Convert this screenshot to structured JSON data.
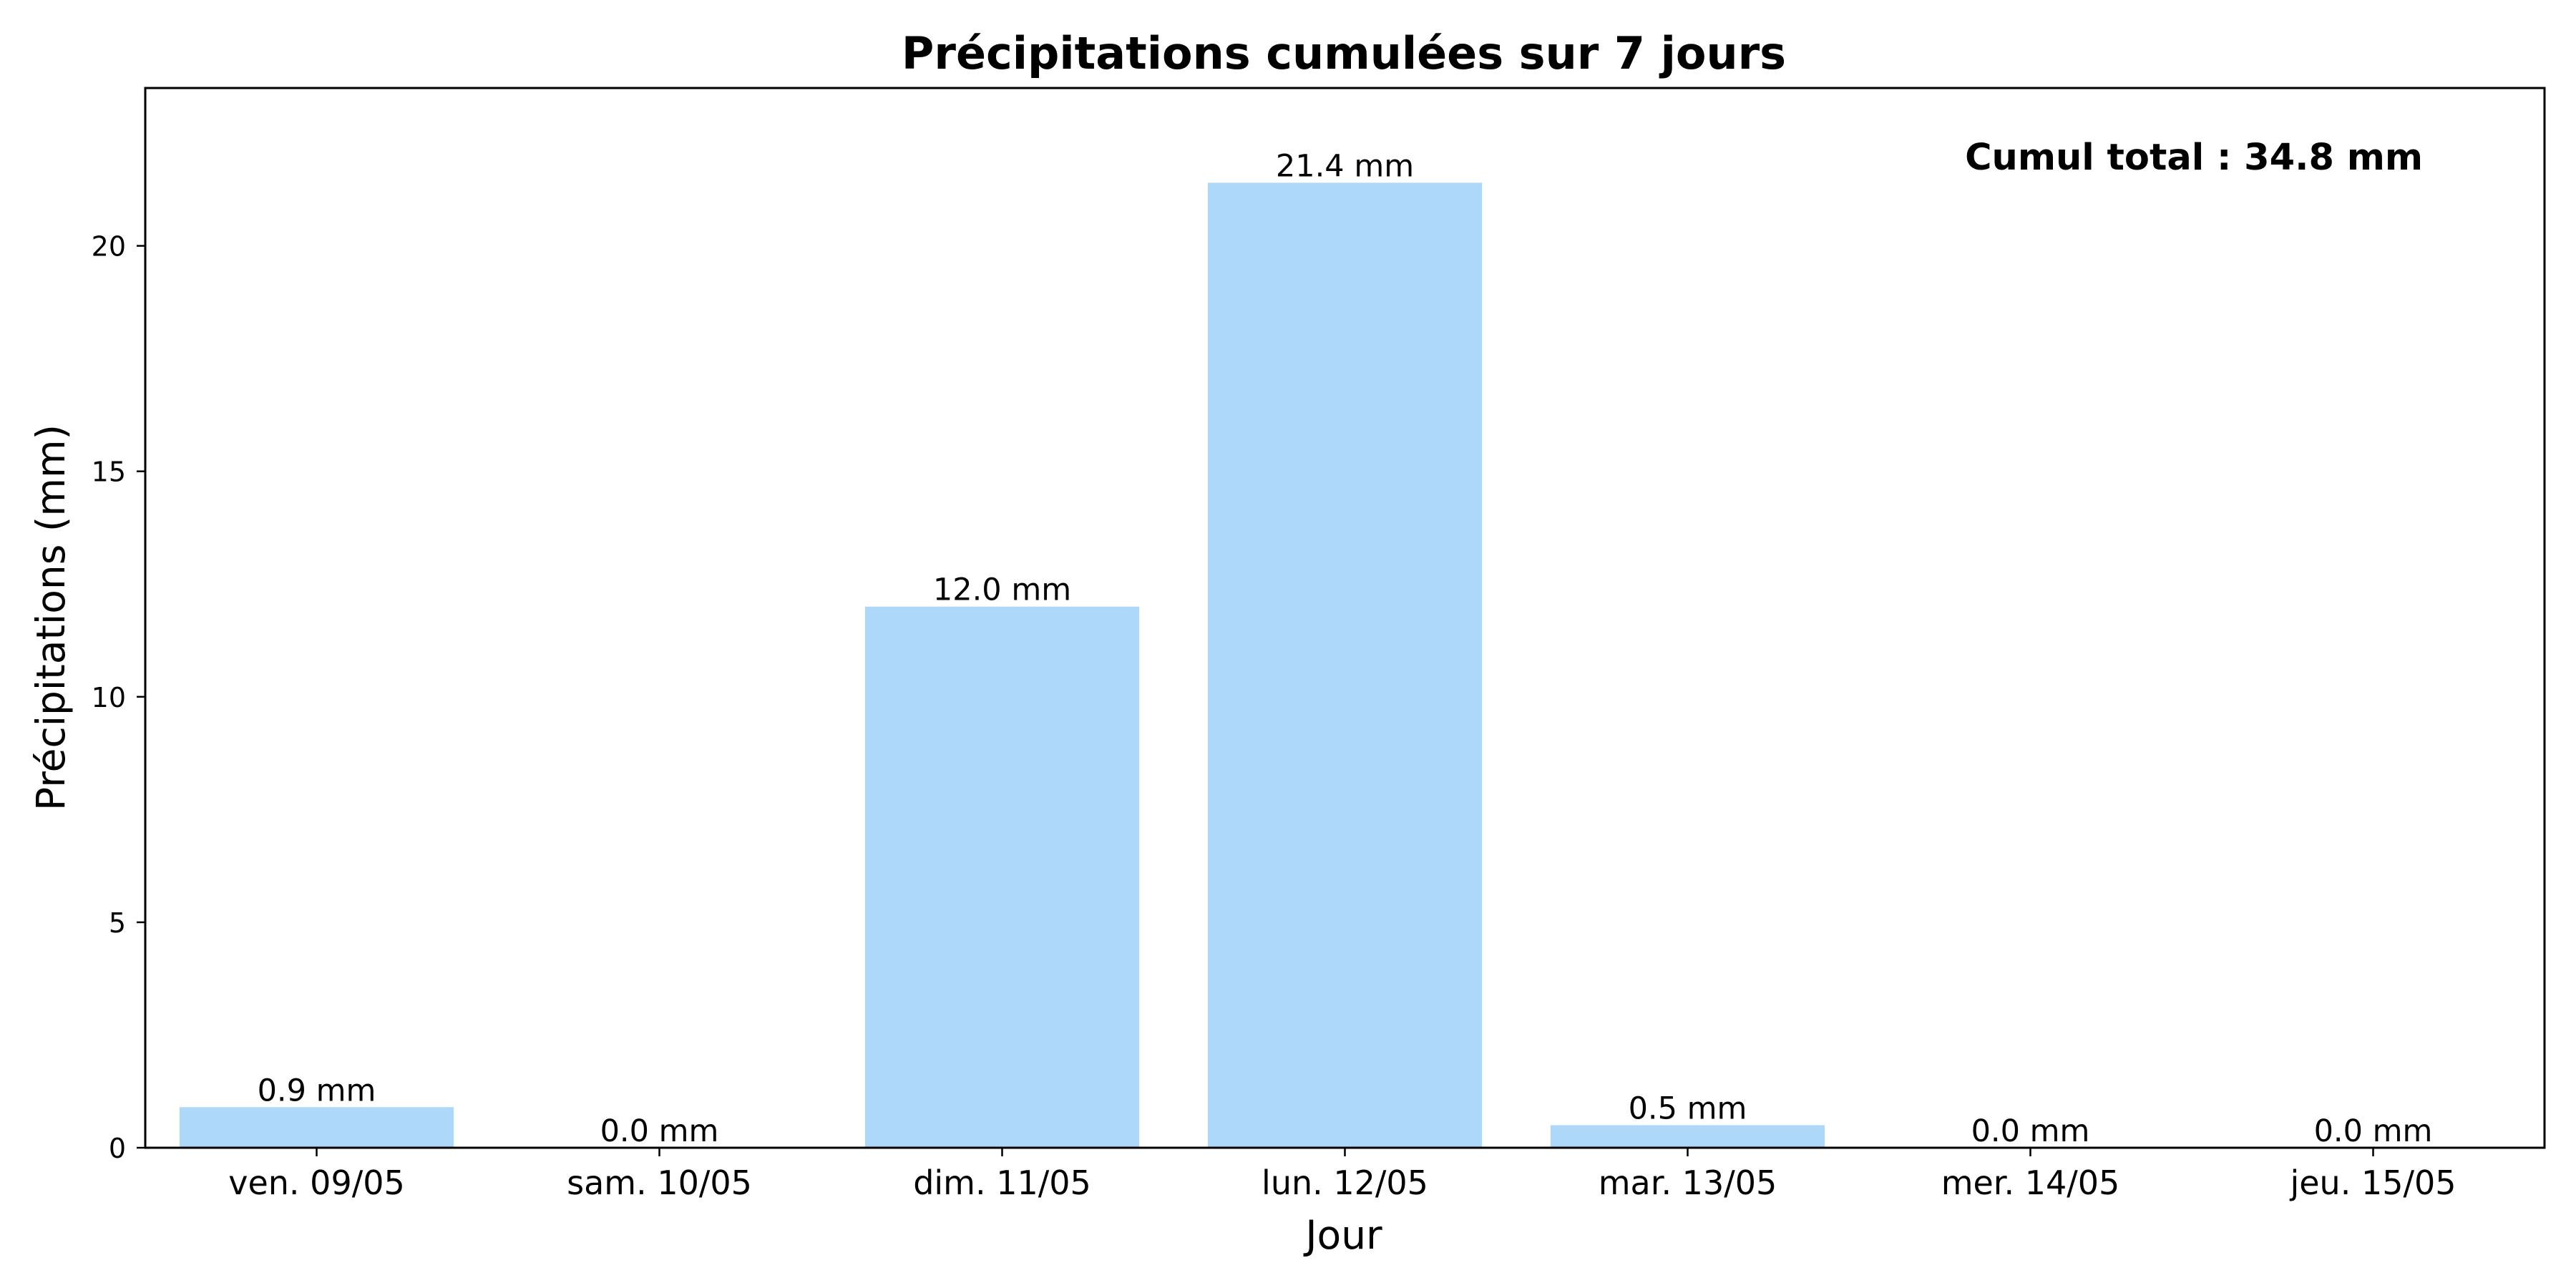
{
  "chart_data": {
    "type": "bar",
    "title": "Précipitations cumulées sur 7 jours",
    "xlabel": "Jour",
    "ylabel": "Précipitations (mm)",
    "categories": [
      "ven. 09/05",
      "sam. 10/05",
      "dim. 11/05",
      "lun. 12/05",
      "mar. 13/05",
      "mer. 14/05",
      "jeu. 15/05"
    ],
    "values": [
      0.9,
      0.0,
      12.0,
      21.4,
      0.5,
      0.0,
      0.0
    ],
    "data_labels": [
      "0.9 mm",
      "0.0 mm",
      "12.0 mm",
      "21.4 mm",
      "0.5 mm",
      "0.0 mm",
      "0.0 mm"
    ],
    "ylim": [
      0,
      23.5
    ],
    "yticks": [
      0,
      5,
      10,
      15,
      20
    ],
    "annotation": "Cumul total : 34.8 mm",
    "bar_color": "#add8f9",
    "grid": false,
    "legend": "none"
  }
}
